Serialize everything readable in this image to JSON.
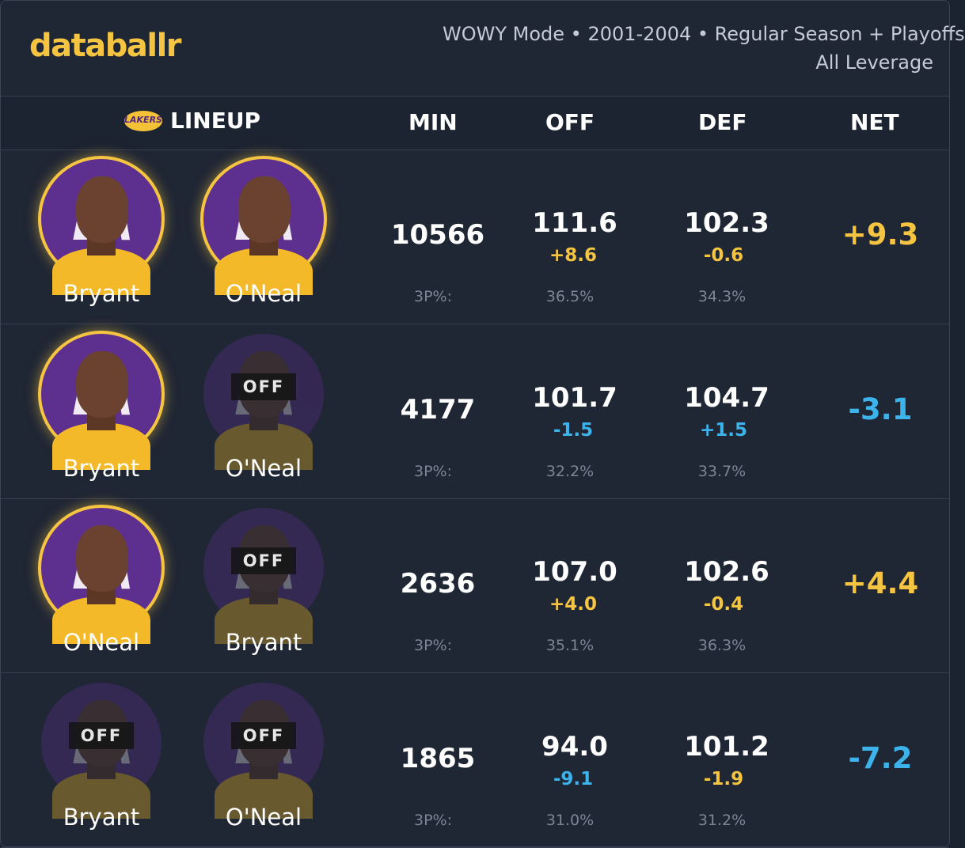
{
  "header": {
    "logo": "databallr",
    "subtitle_line1": "WOWY Mode • 2001-2004 • Regular Season + Playoffs",
    "subtitle_line2": "All Leverage"
  },
  "columns": {
    "lineup": "LINEUP",
    "lineup_badge": "LAKERS",
    "min": "MIN",
    "off": "OFF",
    "def": "DEF",
    "net": "NET"
  },
  "colors": {
    "positive": "#f5c542",
    "negative": "#3db3ec",
    "accent_glow": "#f5c542",
    "team_purple": "#5d2f8e"
  },
  "rows": [
    {
      "players": [
        {
          "name": "Bryant",
          "status": "on",
          "off_label": ""
        },
        {
          "name": "O'Neal",
          "status": "on",
          "off_label": ""
        }
      ],
      "min": "10566",
      "off": "111.6",
      "off_diff": "+8.6",
      "off_diff_sign": "pos",
      "def": "102.3",
      "def_diff": "-0.6",
      "def_diff_sign": "pos",
      "tp_label": "3P%:",
      "off_3p": "36.5%",
      "def_3p": "34.3%",
      "net": "+9.3",
      "net_sign": "pos"
    },
    {
      "players": [
        {
          "name": "Bryant",
          "status": "on",
          "off_label": ""
        },
        {
          "name": "O'Neal",
          "status": "off",
          "off_label": "OFF"
        }
      ],
      "min": "4177",
      "off": "101.7",
      "off_diff": "-1.5",
      "off_diff_sign": "neg",
      "def": "104.7",
      "def_diff": "+1.5",
      "def_diff_sign": "neg",
      "tp_label": "3P%:",
      "off_3p": "32.2%",
      "def_3p": "33.7%",
      "net": "-3.1",
      "net_sign": "neg"
    },
    {
      "players": [
        {
          "name": "O'Neal",
          "status": "on",
          "off_label": ""
        },
        {
          "name": "Bryant",
          "status": "off",
          "off_label": "OFF"
        }
      ],
      "min": "2636",
      "off": "107.0",
      "off_diff": "+4.0",
      "off_diff_sign": "pos",
      "def": "102.6",
      "def_diff": "-0.4",
      "def_diff_sign": "pos",
      "tp_label": "3P%:",
      "off_3p": "35.1%",
      "def_3p": "36.3%",
      "net": "+4.4",
      "net_sign": "pos"
    },
    {
      "players": [
        {
          "name": "Bryant",
          "status": "off",
          "off_label": "OFF"
        },
        {
          "name": "O'Neal",
          "status": "off",
          "off_label": "OFF"
        }
      ],
      "min": "1865",
      "off": "94.0",
      "off_diff": "-9.1",
      "off_diff_sign": "neg",
      "def": "101.2",
      "def_diff": "-1.9",
      "def_diff_sign": "pos",
      "tp_label": "3P%:",
      "off_3p": "31.0%",
      "def_3p": "31.2%",
      "net": "-7.2",
      "net_sign": "neg"
    }
  ]
}
